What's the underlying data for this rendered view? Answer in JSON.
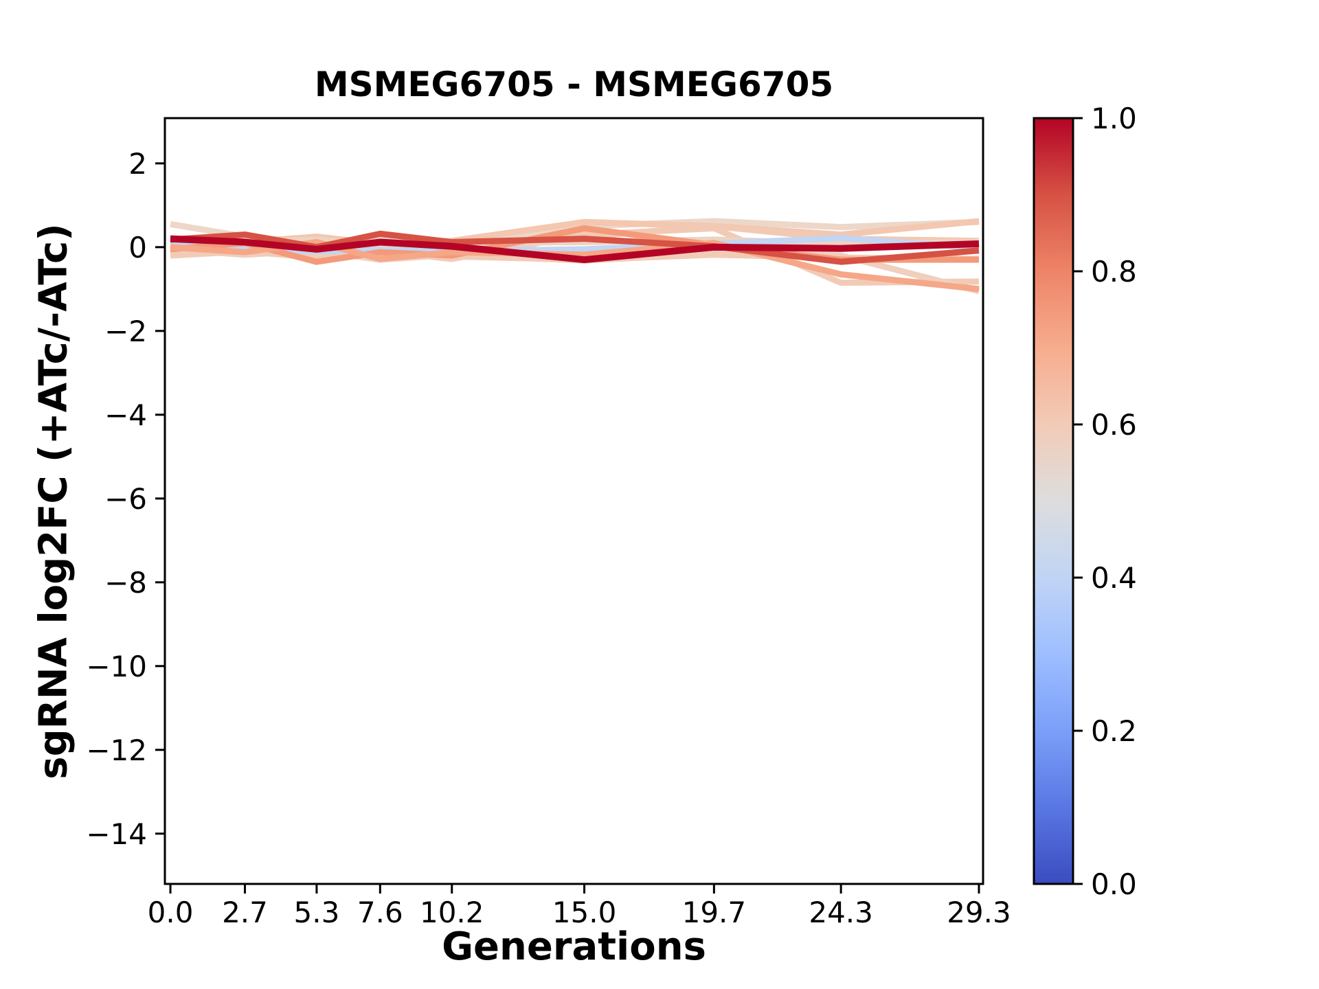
{
  "figure": {
    "background": "#ffffff",
    "text_color": "#000000"
  },
  "chart_data": {
    "type": "line",
    "title": "MSMEG6705 - MSMEG6705",
    "xlabel": "Generations",
    "ylabel": "sgRNA log2FC (+ATc/-ATc)",
    "grid": false,
    "legend": "none",
    "x": [
      0.0,
      2.7,
      5.3,
      7.6,
      10.2,
      15.0,
      19.7,
      24.3,
      29.3
    ],
    "xtick_labels": [
      "0.0",
      "2.7",
      "5.3",
      "7.6",
      "10.2",
      "15.0",
      "19.7",
      "24.3",
      "29.3"
    ],
    "xlim": [
      -0.2,
      29.45
    ],
    "yticks": [
      2,
      0,
      -2,
      -4,
      -6,
      -8,
      -10,
      -12,
      -14
    ],
    "ytick_labels": [
      "2",
      "0",
      "−2",
      "−4",
      "−6",
      "−8",
      "−10",
      "−12",
      "−14"
    ],
    "ylim": [
      -15.2,
      3.08
    ],
    "series": [
      {
        "colormap_value": 0.57,
        "color": "#ecd7c8",
        "line_width": 9,
        "values": [
          0.55,
          0.25,
          0.1,
          0.2,
          0.0,
          0.5,
          0.62,
          0.48,
          0.6
        ]
      },
      {
        "colormap_value": 0.6,
        "color": "#f2cbb7",
        "line_width": 9,
        "values": [
          -0.15,
          0.05,
          -0.2,
          -0.1,
          -0.28,
          0.3,
          0.45,
          -0.85,
          -0.82
        ]
      },
      {
        "colormap_value": 0.62,
        "color": "#f3c7b0",
        "line_width": 9,
        "values": [
          0.2,
          0.12,
          0.25,
          0.08,
          0.15,
          0.6,
          0.5,
          0.3,
          0.62
        ]
      },
      {
        "colormap_value": 0.59,
        "color": "#f0cfbd",
        "line_width": 9,
        "values": [
          -0.05,
          -0.18,
          -0.08,
          -0.3,
          -0.18,
          -0.32,
          -0.15,
          -0.2,
          -1.05
        ]
      },
      {
        "colormap_value": 0.61,
        "color": "#f2c9b3",
        "line_width": 9,
        "values": [
          0.05,
          -0.08,
          0.02,
          -0.18,
          -0.05,
          0.25,
          0.5,
          0.2,
          0.15
        ]
      },
      {
        "colormap_value": 0.58,
        "color": "#eed3c2",
        "line_width": 9,
        "values": [
          0.15,
          0.1,
          0.18,
          0.02,
          0.1,
          0.12,
          0.18,
          0.08,
          0.12
        ]
      },
      {
        "colormap_value": 0.6,
        "color": "#f2cbb7",
        "line_width": 9,
        "values": [
          -0.2,
          -0.1,
          -0.25,
          -0.15,
          -0.22,
          -0.3,
          -0.18,
          -0.25,
          -0.28
        ]
      },
      {
        "colormap_value": 0.42,
        "color": "#c2d5f2",
        "line_width": 9,
        "values": [
          0.05,
          -0.03,
          -0.1,
          -0.07,
          -0.1,
          -0.05,
          0.08,
          0.22,
          -0.02
        ]
      },
      {
        "colormap_value": 0.75,
        "color": "#f39a7b",
        "line_width": 9,
        "values": [
          -0.05,
          0.1,
          -0.35,
          -0.12,
          -0.2,
          0.45,
          0.05,
          -0.3,
          -0.3
        ]
      },
      {
        "colormap_value": 0.72,
        "color": "#f5a787",
        "line_width": 9,
        "values": [
          0.0,
          -0.12,
          0.12,
          -0.28,
          -0.12,
          -0.18,
          0.1,
          -0.65,
          -1.0
        ]
      },
      {
        "colormap_value": 0.9,
        "color": "#d65244",
        "line_width": 9,
        "values": [
          0.18,
          0.3,
          0.0,
          0.32,
          0.12,
          0.2,
          0.02,
          -0.35,
          -0.08
        ]
      },
      {
        "colormap_value": 1.0,
        "color": "#b40426",
        "line_width": 10,
        "values": [
          0.2,
          0.12,
          -0.05,
          0.12,
          0.02,
          -0.3,
          0.0,
          -0.03,
          0.08
        ]
      }
    ],
    "colorbar": {
      "cmap": "coolwarm",
      "range": [
        0.0,
        1.0
      ],
      "ticks": [
        0.0,
        0.2,
        0.4,
        0.6,
        0.8,
        1.0
      ],
      "tick_labels": [
        "0.0",
        "0.2",
        "0.4",
        "0.6",
        "0.8",
        "1.0"
      ],
      "gradient_stops": [
        "#3b4cc0",
        "#5977e3",
        "#7b9ff9",
        "#9ebeff",
        "#c0d4f5",
        "#dddddd",
        "#f2cbb7",
        "#f7ac8e",
        "#ee8468",
        "#d65244",
        "#b40426"
      ]
    }
  }
}
